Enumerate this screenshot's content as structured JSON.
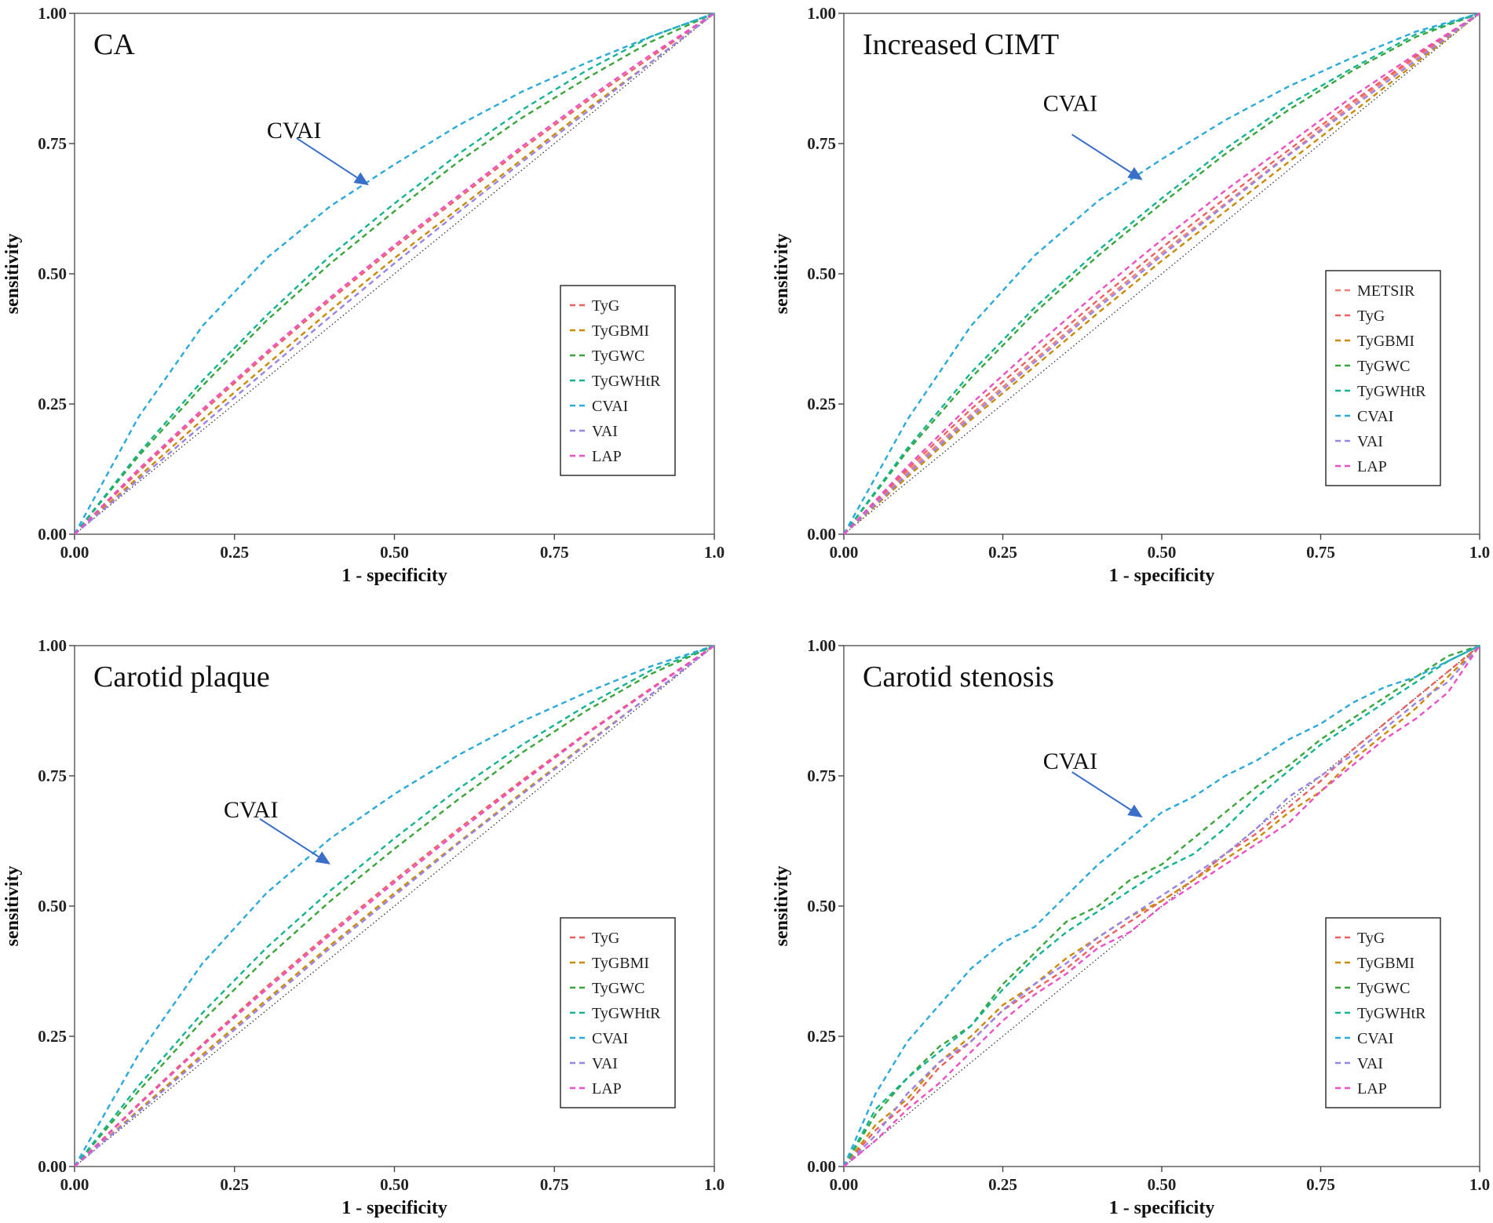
{
  "figure": {
    "colors": {
      "METSIR": "#f08070",
      "TyG": "#ee5f5f",
      "TyGBMI": "#cc8a00",
      "TyGWC": "#3aa63a",
      "TyGWHtR": "#14b392",
      "CVAI": "#2aa9dc",
      "VAI": "#9a82e8",
      "LAP": "#ec4fc6",
      "reference": "#333333",
      "arrow": "#3a6fc9"
    }
  },
  "chart_data": [
    {
      "type": "line",
      "title": "CA",
      "xlabel": "1 - specificity",
      "ylabel": "sensitivity",
      "xlim": [
        0,
        1
      ],
      "ylim": [
        0,
        1
      ],
      "xticks": [
        "0.00",
        "0.25",
        "0.50",
        "0.75",
        "1.0"
      ],
      "yticks": [
        "0.00",
        "0.25",
        "0.50",
        "0.75",
        "1.00"
      ],
      "legend_position": "right",
      "legend": [
        "TyG",
        "TyGBMI",
        "TyGWC",
        "TyGWHtR",
        "CVAI",
        "VAI",
        "LAP"
      ],
      "annotation": {
        "text": "CVAI",
        "target": [
          0.46,
          0.67
        ]
      },
      "series": [
        {
          "name": "TyG",
          "x": [
            0,
            0.1,
            0.2,
            0.3,
            0.4,
            0.5,
            0.6,
            0.7,
            0.8,
            0.9,
            1
          ],
          "y": [
            0,
            0.12,
            0.235,
            0.345,
            0.45,
            0.55,
            0.645,
            0.74,
            0.83,
            0.915,
            1
          ]
        },
        {
          "name": "TyGBMI",
          "x": [
            0,
            0.1,
            0.2,
            0.3,
            0.4,
            0.5,
            0.6,
            0.7,
            0.8,
            0.9,
            1
          ],
          "y": [
            0,
            0.11,
            0.22,
            0.325,
            0.43,
            0.53,
            0.625,
            0.72,
            0.815,
            0.905,
            1
          ]
        },
        {
          "name": "TyGWC",
          "x": [
            0,
            0.1,
            0.2,
            0.3,
            0.4,
            0.5,
            0.6,
            0.7,
            0.8,
            0.9,
            1
          ],
          "y": [
            0,
            0.15,
            0.285,
            0.41,
            0.52,
            0.62,
            0.715,
            0.8,
            0.875,
            0.945,
            1
          ]
        },
        {
          "name": "TyGWHtR",
          "x": [
            0,
            0.1,
            0.2,
            0.3,
            0.4,
            0.5,
            0.6,
            0.7,
            0.8,
            0.9,
            1
          ],
          "y": [
            0,
            0.155,
            0.295,
            0.42,
            0.535,
            0.635,
            0.73,
            0.815,
            0.89,
            0.955,
            1
          ]
        },
        {
          "name": "CVAI",
          "x": [
            0,
            0.1,
            0.2,
            0.3,
            0.4,
            0.5,
            0.6,
            0.7,
            0.8,
            0.9,
            1
          ],
          "y": [
            0,
            0.225,
            0.4,
            0.53,
            0.63,
            0.71,
            0.785,
            0.85,
            0.905,
            0.955,
            1
          ]
        },
        {
          "name": "VAI",
          "x": [
            0,
            0.1,
            0.2,
            0.3,
            0.4,
            0.5,
            0.6,
            0.7,
            0.8,
            0.9,
            1
          ],
          "y": [
            0,
            0.105,
            0.21,
            0.315,
            0.418,
            0.52,
            0.618,
            0.715,
            0.81,
            0.905,
            1
          ]
        },
        {
          "name": "LAP",
          "x": [
            0,
            0.1,
            0.2,
            0.3,
            0.4,
            0.5,
            0.6,
            0.7,
            0.8,
            0.9,
            1
          ],
          "y": [
            0,
            0.125,
            0.24,
            0.35,
            0.455,
            0.555,
            0.65,
            0.745,
            0.835,
            0.92,
            1
          ]
        }
      ]
    },
    {
      "type": "line",
      "title": "Increased CIMT",
      "xlabel": "1 - specificity",
      "ylabel": "sensitivity",
      "xlim": [
        0,
        1
      ],
      "ylim": [
        0,
        1
      ],
      "xticks": [
        "0.00",
        "0.25",
        "0.50",
        "0.75",
        "1.0"
      ],
      "yticks": [
        "0.00",
        "0.25",
        "0.50",
        "0.75",
        "1.00"
      ],
      "legend_position": "right",
      "legend": [
        "METSIR",
        "TyG",
        "TyGBMI",
        "TyGWC",
        "TyGWHtR",
        "CVAI",
        "VAI",
        "LAP"
      ],
      "annotation": {
        "text": "CVAI",
        "target": [
          0.47,
          0.68
        ]
      },
      "series": [
        {
          "name": "METSIR",
          "x": [
            0,
            0.1,
            0.2,
            0.3,
            0.4,
            0.5,
            0.6,
            0.7,
            0.8,
            0.9,
            1
          ],
          "y": [
            0,
            0.12,
            0.23,
            0.335,
            0.44,
            0.54,
            0.635,
            0.73,
            0.825,
            0.915,
            1
          ]
        },
        {
          "name": "TyG",
          "x": [
            0,
            0.1,
            0.2,
            0.3,
            0.4,
            0.5,
            0.6,
            0.7,
            0.8,
            0.9,
            1
          ],
          "y": [
            0,
            0.125,
            0.24,
            0.345,
            0.45,
            0.55,
            0.645,
            0.738,
            0.83,
            0.918,
            1
          ]
        },
        {
          "name": "TyGBMI",
          "x": [
            0,
            0.1,
            0.2,
            0.3,
            0.4,
            0.5,
            0.6,
            0.7,
            0.8,
            0.9,
            1
          ],
          "y": [
            0,
            0.11,
            0.22,
            0.322,
            0.425,
            0.525,
            0.62,
            0.715,
            0.81,
            0.905,
            1
          ]
        },
        {
          "name": "TyGWC",
          "x": [
            0,
            0.1,
            0.2,
            0.3,
            0.4,
            0.5,
            0.6,
            0.7,
            0.8,
            0.9,
            1
          ],
          "y": [
            0,
            0.16,
            0.3,
            0.425,
            0.535,
            0.635,
            0.73,
            0.815,
            0.89,
            0.955,
            1
          ]
        },
        {
          "name": "TyGWHtR",
          "x": [
            0,
            0.1,
            0.2,
            0.3,
            0.4,
            0.5,
            0.6,
            0.7,
            0.8,
            0.9,
            1
          ],
          "y": [
            0,
            0.165,
            0.31,
            0.435,
            0.545,
            0.645,
            0.74,
            0.825,
            0.895,
            0.96,
            1
          ]
        },
        {
          "name": "CVAI",
          "x": [
            0,
            0.1,
            0.2,
            0.3,
            0.4,
            0.5,
            0.6,
            0.7,
            0.8,
            0.9,
            1
          ],
          "y": [
            0,
            0.22,
            0.4,
            0.535,
            0.64,
            0.72,
            0.795,
            0.86,
            0.915,
            0.965,
            1
          ]
        },
        {
          "name": "VAI",
          "x": [
            0,
            0.1,
            0.2,
            0.3,
            0.4,
            0.5,
            0.6,
            0.7,
            0.8,
            0.9,
            1
          ],
          "y": [
            0,
            0.115,
            0.225,
            0.33,
            0.435,
            0.535,
            0.632,
            0.728,
            0.82,
            0.91,
            1
          ]
        },
        {
          "name": "LAP",
          "x": [
            0,
            0.1,
            0.2,
            0.3,
            0.4,
            0.5,
            0.6,
            0.7,
            0.8,
            0.9,
            1
          ],
          "y": [
            0,
            0.13,
            0.25,
            0.36,
            0.465,
            0.565,
            0.66,
            0.75,
            0.84,
            0.922,
            1
          ]
        }
      ]
    },
    {
      "type": "line",
      "title": "Carotid plaque",
      "xlabel": "1 - specificity",
      "ylabel": "sensitivity",
      "xlim": [
        0,
        1
      ],
      "ylim": [
        0,
        1
      ],
      "xticks": [
        "0.00",
        "0.25",
        "0.50",
        "0.75",
        "1.0"
      ],
      "yticks": [
        "0.00",
        "0.25",
        "0.50",
        "0.75",
        "1.00"
      ],
      "legend_position": "right",
      "legend": [
        "TyG",
        "TyGBMI",
        "TyGWC",
        "TyGWHtR",
        "CVAI",
        "VAI",
        "LAP"
      ],
      "annotation": {
        "text": "CVAI",
        "target": [
          0.4,
          0.58
        ]
      },
      "series": [
        {
          "name": "TyG",
          "x": [
            0,
            0.1,
            0.2,
            0.3,
            0.4,
            0.5,
            0.6,
            0.7,
            0.8,
            0.9,
            1
          ],
          "y": [
            0,
            0.12,
            0.235,
            0.345,
            0.45,
            0.55,
            0.648,
            0.742,
            0.832,
            0.917,
            1
          ]
        },
        {
          "name": "TyGBMI",
          "x": [
            0,
            0.1,
            0.2,
            0.3,
            0.4,
            0.5,
            0.6,
            0.7,
            0.8,
            0.9,
            1
          ],
          "y": [
            0,
            0.108,
            0.215,
            0.32,
            0.425,
            0.525,
            0.622,
            0.718,
            0.812,
            0.905,
            1
          ]
        },
        {
          "name": "TyGWC",
          "x": [
            0,
            0.1,
            0.2,
            0.3,
            0.4,
            0.5,
            0.6,
            0.7,
            0.8,
            0.9,
            1
          ],
          "y": [
            0,
            0.145,
            0.28,
            0.4,
            0.51,
            0.61,
            0.705,
            0.795,
            0.875,
            0.945,
            1
          ]
        },
        {
          "name": "TyGWHtR",
          "x": [
            0,
            0.1,
            0.2,
            0.3,
            0.4,
            0.5,
            0.6,
            0.7,
            0.8,
            0.9,
            1
          ],
          "y": [
            0,
            0.155,
            0.295,
            0.42,
            0.53,
            0.63,
            0.725,
            0.81,
            0.885,
            0.952,
            1
          ]
        },
        {
          "name": "CVAI",
          "x": [
            0,
            0.1,
            0.2,
            0.3,
            0.4,
            0.5,
            0.6,
            0.7,
            0.8,
            0.9,
            1
          ],
          "y": [
            0,
            0.215,
            0.39,
            0.525,
            0.63,
            0.715,
            0.79,
            0.855,
            0.91,
            0.96,
            1
          ]
        },
        {
          "name": "VAI",
          "x": [
            0,
            0.1,
            0.2,
            0.3,
            0.4,
            0.5,
            0.6,
            0.7,
            0.8,
            0.9,
            1
          ],
          "y": [
            0,
            0.105,
            0.21,
            0.315,
            0.42,
            0.52,
            0.62,
            0.715,
            0.81,
            0.905,
            1
          ]
        },
        {
          "name": "LAP",
          "x": [
            0,
            0.1,
            0.2,
            0.3,
            0.4,
            0.5,
            0.6,
            0.7,
            0.8,
            0.9,
            1
          ],
          "y": [
            0,
            0.118,
            0.232,
            0.34,
            0.445,
            0.545,
            0.643,
            0.738,
            0.83,
            0.915,
            1
          ]
        }
      ]
    },
    {
      "type": "line",
      "title": "Carotid stenosis",
      "xlabel": "1 - specificity",
      "ylabel": "sensitivity",
      "xlim": [
        0,
        1
      ],
      "ylim": [
        0,
        1
      ],
      "xticks": [
        "0.00",
        "0.25",
        "0.50",
        "0.75",
        "1.0"
      ],
      "yticks": [
        "0.00",
        "0.25",
        "0.50",
        "0.75",
        "1.00"
      ],
      "legend_position": "right",
      "legend": [
        "TyG",
        "TyGBMI",
        "TyGWC",
        "TyGWHtR",
        "CVAI",
        "VAI",
        "LAP"
      ],
      "annotation": {
        "text": "CVAI",
        "target": [
          0.47,
          0.67
        ]
      },
      "series": [
        {
          "name": "TyG",
          "x": [
            0,
            0.05,
            0.1,
            0.15,
            0.2,
            0.25,
            0.3,
            0.35,
            0.4,
            0.45,
            0.5,
            0.55,
            0.6,
            0.65,
            0.7,
            0.75,
            0.8,
            0.85,
            0.9,
            0.95,
            1
          ],
          "y": [
            0,
            0.07,
            0.12,
            0.19,
            0.24,
            0.3,
            0.34,
            0.38,
            0.43,
            0.47,
            0.51,
            0.55,
            0.6,
            0.64,
            0.69,
            0.74,
            0.8,
            0.85,
            0.9,
            0.95,
            1
          ]
        },
        {
          "name": "TyGBMI",
          "x": [
            0,
            0.05,
            0.1,
            0.15,
            0.2,
            0.25,
            0.3,
            0.35,
            0.4,
            0.45,
            0.5,
            0.55,
            0.6,
            0.65,
            0.7,
            0.75,
            0.8,
            0.85,
            0.9,
            0.95,
            1
          ],
          "y": [
            0,
            0.08,
            0.13,
            0.2,
            0.25,
            0.31,
            0.35,
            0.4,
            0.44,
            0.48,
            0.51,
            0.55,
            0.59,
            0.63,
            0.68,
            0.72,
            0.78,
            0.83,
            0.88,
            0.94,
            1
          ]
        },
        {
          "name": "TyGWC",
          "x": [
            0,
            0.05,
            0.1,
            0.15,
            0.2,
            0.25,
            0.3,
            0.35,
            0.4,
            0.45,
            0.5,
            0.55,
            0.6,
            0.65,
            0.7,
            0.75,
            0.8,
            0.85,
            0.9,
            0.95,
            1
          ],
          "y": [
            0,
            0.1,
            0.17,
            0.23,
            0.27,
            0.35,
            0.41,
            0.47,
            0.5,
            0.55,
            0.58,
            0.63,
            0.68,
            0.73,
            0.77,
            0.82,
            0.86,
            0.9,
            0.94,
            0.98,
            1
          ]
        },
        {
          "name": "TyGWHtR",
          "x": [
            0,
            0.05,
            0.1,
            0.15,
            0.2,
            0.25,
            0.3,
            0.35,
            0.4,
            0.45,
            0.5,
            0.55,
            0.6,
            0.65,
            0.7,
            0.75,
            0.8,
            0.85,
            0.9,
            0.95,
            1
          ],
          "y": [
            0,
            0.11,
            0.17,
            0.22,
            0.27,
            0.34,
            0.4,
            0.45,
            0.49,
            0.53,
            0.57,
            0.6,
            0.65,
            0.71,
            0.76,
            0.81,
            0.85,
            0.89,
            0.93,
            0.97,
            1
          ]
        },
        {
          "name": "CVAI",
          "x": [
            0,
            0.05,
            0.1,
            0.15,
            0.2,
            0.25,
            0.3,
            0.35,
            0.4,
            0.45,
            0.5,
            0.55,
            0.6,
            0.65,
            0.7,
            0.75,
            0.8,
            0.85,
            0.9,
            0.95,
            1
          ],
          "y": [
            0,
            0.14,
            0.24,
            0.31,
            0.38,
            0.43,
            0.46,
            0.52,
            0.58,
            0.63,
            0.68,
            0.71,
            0.75,
            0.78,
            0.82,
            0.85,
            0.89,
            0.92,
            0.94,
            0.97,
            1
          ]
        },
        {
          "name": "VAI",
          "x": [
            0,
            0.05,
            0.1,
            0.15,
            0.2,
            0.25,
            0.3,
            0.35,
            0.4,
            0.45,
            0.5,
            0.55,
            0.6,
            0.65,
            0.7,
            0.75,
            0.8,
            0.85,
            0.9,
            0.95,
            1
          ],
          "y": [
            0,
            0.06,
            0.14,
            0.2,
            0.24,
            0.3,
            0.35,
            0.39,
            0.44,
            0.48,
            0.52,
            0.56,
            0.6,
            0.65,
            0.71,
            0.75,
            0.79,
            0.84,
            0.89,
            0.93,
            1
          ]
        },
        {
          "name": "LAP",
          "x": [
            0,
            0.05,
            0.1,
            0.15,
            0.2,
            0.25,
            0.3,
            0.35,
            0.4,
            0.45,
            0.5,
            0.55,
            0.6,
            0.65,
            0.7,
            0.75,
            0.8,
            0.85,
            0.9,
            0.95,
            1
          ],
          "y": [
            0,
            0.05,
            0.11,
            0.16,
            0.22,
            0.28,
            0.33,
            0.37,
            0.42,
            0.45,
            0.5,
            0.54,
            0.58,
            0.62,
            0.66,
            0.72,
            0.77,
            0.82,
            0.86,
            0.91,
            1
          ]
        }
      ]
    }
  ]
}
